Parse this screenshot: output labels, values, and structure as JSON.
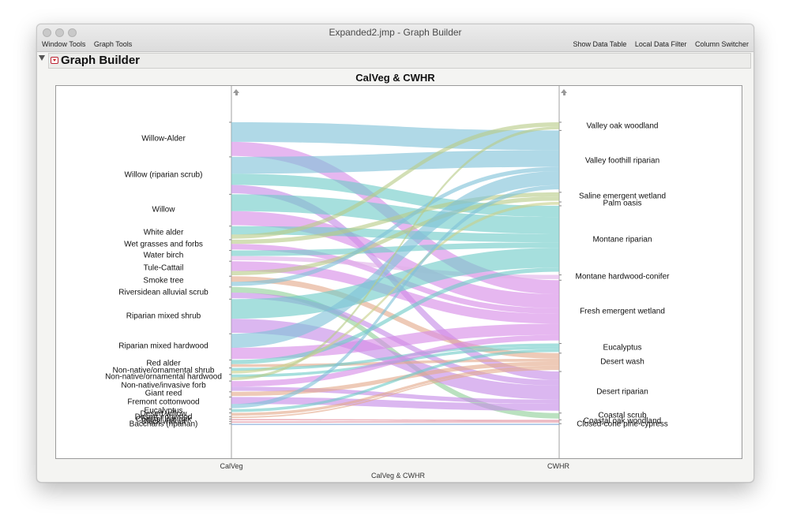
{
  "window": {
    "title": "Expanded2.jmp - Graph Builder",
    "menu_left": [
      "Window Tools",
      "Graph Tools"
    ],
    "menu_right": [
      "Show Data Table",
      "Local Data Filter",
      "Column Switcher"
    ]
  },
  "panel": {
    "title": "Graph Builder"
  },
  "chart_data": {
    "type": "parallel-sets",
    "title": "CalVeg & CWHR",
    "xlabel": "CalVeg & CWHR",
    "axes": [
      "CalVeg",
      "CWHR"
    ],
    "left_categories": [
      "Willow-Alder",
      "Willow (riparian scrub)",
      "Willow",
      "White alder",
      "Wet grasses and forbs",
      "Water birch",
      "Tule-Cattail",
      "Smoke tree",
      "Riversidean alluvial scrub",
      "Riparian mixed shrub",
      "Riparian mixed hardwood",
      "Red alder",
      "Non-native/ornamental shrub",
      "Non-native/ornamental hardwood",
      "Non-native/invasive forb",
      "Giant reed",
      "Fremont cottonwood",
      "Eucalyptus",
      "Desert willow",
      "Desert ironwood",
      "Coastal live oak",
      "Black walnut",
      "Baccharis (riparian)"
    ],
    "right_categories": [
      "Valley oak woodland",
      "Valley foothill riparian",
      "Saline emergent wetland",
      "Palm oasis",
      "Montane riparian",
      "Montane hardwood-conifer",
      "Fresh emergent wetland",
      "Eucalyptus",
      "Desert wash",
      "Desert riparian",
      "Coastal scrub",
      "Coastal oak woodland",
      "Closed-cone pine-cypress"
    ],
    "right_colors": [
      "#b8cc88",
      "#7fc1d8",
      "#b8cc88",
      "#c8d08a",
      "#6fccc8",
      "#e0b0e8",
      "#d78ae6",
      "#6fccc8",
      "#e3a98a",
      "#c58ae6",
      "#8fcf98",
      "#e08a9a",
      "#7fa8d8"
    ],
    "flows": [
      {
        "from": "Willow-Alder",
        "to": "Valley foothill riparian",
        "value": 14
      },
      {
        "from": "Willow-Alder",
        "to": "Fresh emergent wetland",
        "value": 10
      },
      {
        "from": "Willow (riparian scrub)",
        "to": "Valley foothill riparian",
        "value": 12
      },
      {
        "from": "Willow (riparian scrub)",
        "to": "Montane riparian",
        "value": 8
      },
      {
        "from": "Willow (riparian scrub)",
        "to": "Desert riparian",
        "value": 6
      },
      {
        "from": "Willow",
        "to": "Montane riparian",
        "value": 12
      },
      {
        "from": "Willow",
        "to": "Fresh emergent wetland",
        "value": 10
      },
      {
        "from": "White alder",
        "to": "Montane riparian",
        "value": 6
      },
      {
        "from": "White alder",
        "to": "Valley oak woodland",
        "value": 3
      },
      {
        "from": "Wet grasses and forbs",
        "to": "Saline emergent wetland",
        "value": 3
      },
      {
        "from": "Wet grasses and forbs",
        "to": "Fresh emergent wetland",
        "value": 4
      },
      {
        "from": "Water birch",
        "to": "Montane riparian",
        "value": 4
      },
      {
        "from": "Water birch",
        "to": "Montane hardwood-conifer",
        "value": 3
      },
      {
        "from": "Tule-Cattail",
        "to": "Fresh emergent wetland",
        "value": 7
      },
      {
        "from": "Tule-Cattail",
        "to": "Saline emergent wetland",
        "value": 3
      },
      {
        "from": "Smoke tree",
        "to": "Desert wash",
        "value": 4
      },
      {
        "from": "Smoke tree",
        "to": "Valley foothill riparian",
        "value": 3
      },
      {
        "from": "Riversidean alluvial scrub",
        "to": "Coastal scrub",
        "value": 4
      },
      {
        "from": "Riversidean alluvial scrub",
        "to": "Desert riparian",
        "value": 4
      },
      {
        "from": "Riparian mixed shrub",
        "to": "Montane riparian",
        "value": 14
      },
      {
        "from": "Riparian mixed shrub",
        "to": "Desert riparian",
        "value": 10
      },
      {
        "from": "Riparian mixed hardwood",
        "to": "Valley foothill riparian",
        "value": 10
      },
      {
        "from": "Riparian mixed hardwood",
        "to": "Fresh emergent wetland",
        "value": 8
      },
      {
        "from": "Red alder",
        "to": "Montane riparian",
        "value": 3
      },
      {
        "from": "Red alder",
        "to": "Desert wash",
        "value": 2
      },
      {
        "from": "Non-native/ornamental shrub",
        "to": "Eucalyptus",
        "value": 2
      },
      {
        "from": "Non-native/ornamental shrub",
        "to": "Palm oasis",
        "value": 2
      },
      {
        "from": "Non-native/ornamental hardwood",
        "to": "Eucalyptus",
        "value": 2
      },
      {
        "from": "Non-native/ornamental hardwood",
        "to": "Valley oak woodland",
        "value": 2
      },
      {
        "from": "Non-native/invasive forb",
        "to": "Fresh emergent wetland",
        "value": 4
      },
      {
        "from": "Non-native/invasive forb",
        "to": "Desert riparian",
        "value": 3
      },
      {
        "from": "Giant reed",
        "to": "Desert wash",
        "value": 3
      },
      {
        "from": "Fremont cottonwood",
        "to": "Desert riparian",
        "value": 5
      },
      {
        "from": "Fremont cottonwood",
        "to": "Valley foothill riparian",
        "value": 3
      },
      {
        "from": "Eucalyptus",
        "to": "Eucalyptus",
        "value": 2
      },
      {
        "from": "Desert willow",
        "to": "Desert wash",
        "value": 2
      },
      {
        "from": "Desert ironwood",
        "to": "Desert wash",
        "value": 1
      },
      {
        "from": "Coastal live oak",
        "to": "Coastal oak woodland",
        "value": 1
      },
      {
        "from": "Black walnut",
        "to": "Coastal oak woodland",
        "value": 1
      },
      {
        "from": "Baccharis (riparian)",
        "to": "Closed-cone pine-cypress",
        "value": 1
      }
    ]
  }
}
